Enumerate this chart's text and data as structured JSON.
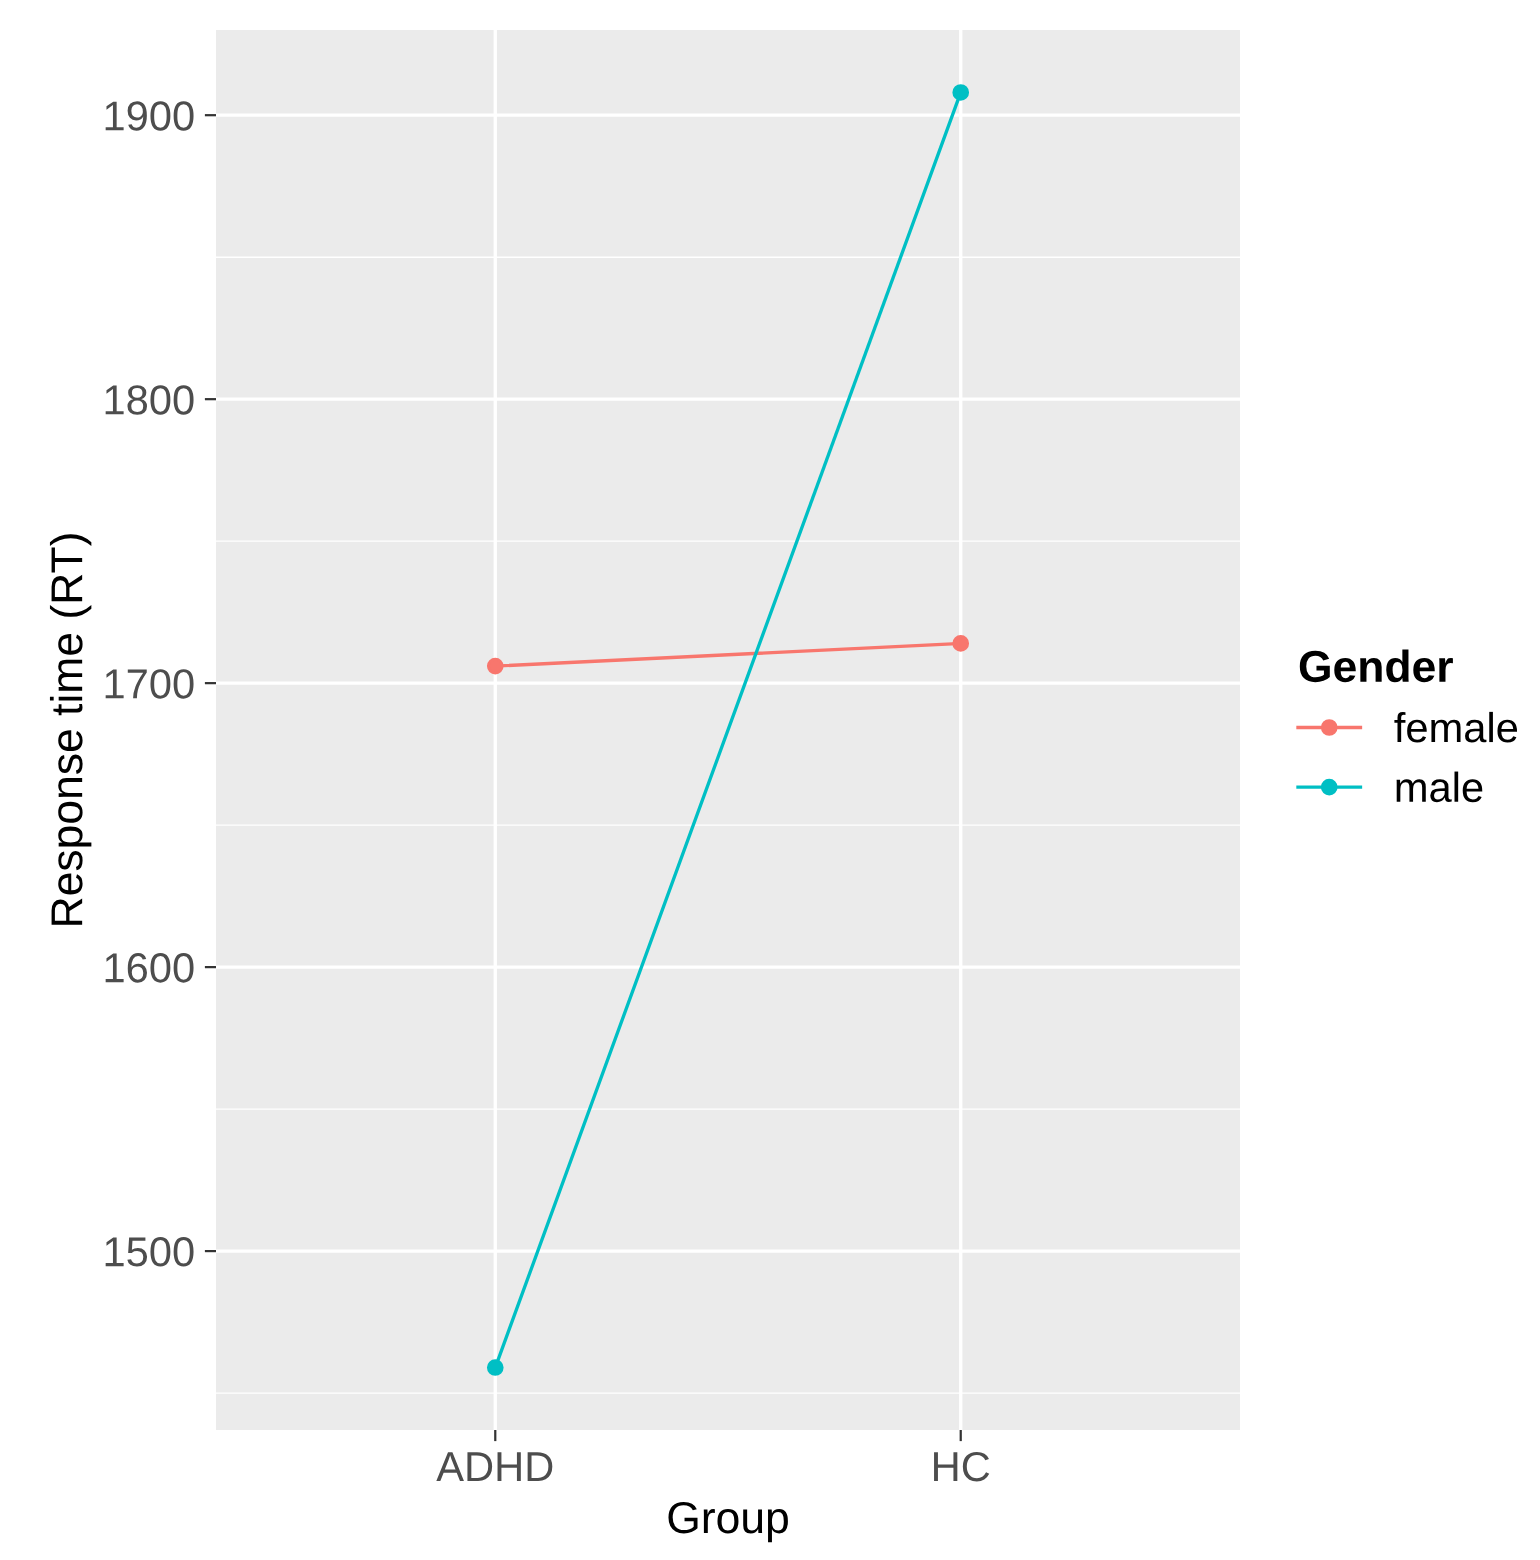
{
  "chart_data": {
    "type": "line",
    "xlabel": "Group",
    "ylabel": "Response time (RT)",
    "legend_title": "Gender",
    "categories": [
      "ADHD",
      "HC"
    ],
    "series": [
      {
        "name": "female",
        "color": "#f8766d",
        "values": [
          1706,
          1714
        ]
      },
      {
        "name": "male",
        "color": "#00bfc4",
        "values": [
          1459,
          1908
        ]
      }
    ],
    "ylim": [
      1437,
      1930
    ],
    "yticks": [
      1500,
      1600,
      1700,
      1800,
      1900
    ],
    "grid": true,
    "legend": "right",
    "marker": "circle",
    "line_style": "solid"
  }
}
